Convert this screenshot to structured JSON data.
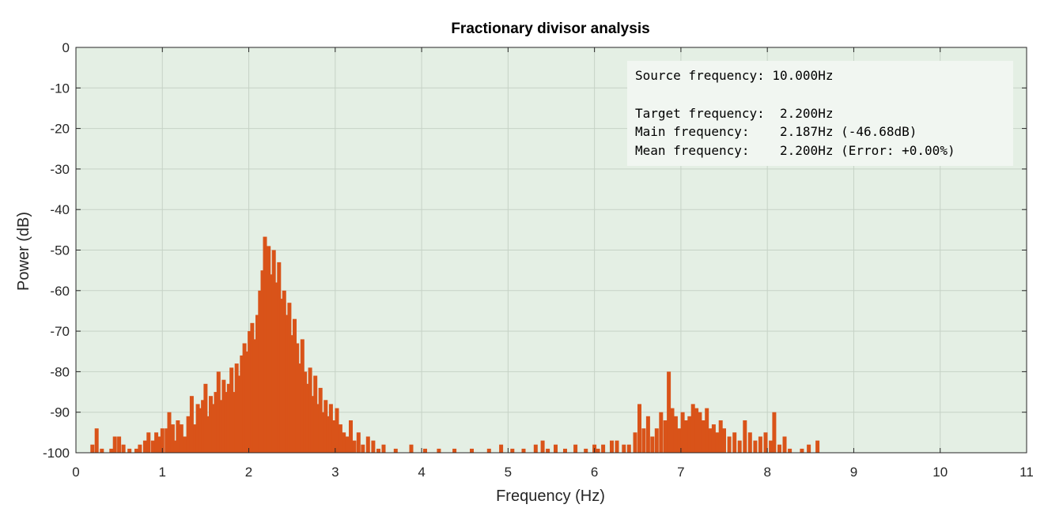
{
  "chart_data": {
    "type": "bar",
    "title": "Fractionary divisor analysis",
    "xlabel": "Frequency (Hz)",
    "ylabel": "Power (dB)",
    "xlim": [
      0,
      11
    ],
    "ylim": [
      -100,
      0
    ],
    "xticks": [
      "0",
      "1",
      "2",
      "3",
      "4",
      "5",
      "6",
      "7",
      "8",
      "9",
      "10",
      "11"
    ],
    "yticks": [
      "0",
      "-10",
      "-20",
      "-30",
      "-40",
      "-50",
      "-60",
      "-70",
      "-80",
      "-90",
      "-100"
    ],
    "grid": true,
    "colors": {
      "series": "#D95319",
      "plot_background": "#E4EFE4",
      "annotation_background": "#F1F6F1"
    },
    "annotation": {
      "position": "top-right",
      "lines": [
        "Source frequency: 10.000Hz",
        "",
        "Target frequency:  2.200Hz",
        "Main frequency:    2.187Hz (-46.68dB)",
        "Mean frequency:    2.200Hz (Error: +0.00%)"
      ]
    },
    "series": [
      {
        "points": [
          [
            0.19,
            -98
          ],
          [
            0.24,
            -94
          ],
          [
            0.3,
            -99
          ],
          [
            0.41,
            -99
          ],
          [
            0.45,
            -96
          ],
          [
            0.5,
            -96
          ],
          [
            0.55,
            -98
          ],
          [
            0.62,
            -99
          ],
          [
            0.7,
            -99
          ],
          [
            0.74,
            -98
          ],
          [
            0.8,
            -97
          ],
          [
            0.84,
            -95
          ],
          [
            0.89,
            -97
          ],
          [
            0.93,
            -95
          ],
          [
            0.97,
            -96
          ],
          [
            1.0,
            -94
          ],
          [
            1.05,
            -94
          ],
          [
            1.08,
            -90
          ],
          [
            1.12,
            -93
          ],
          [
            1.15,
            -97
          ],
          [
            1.18,
            -92
          ],
          [
            1.22,
            -93
          ],
          [
            1.26,
            -96
          ],
          [
            1.3,
            -91
          ],
          [
            1.34,
            -86
          ],
          [
            1.38,
            -93
          ],
          [
            1.41,
            -88
          ],
          [
            1.44,
            -89
          ],
          [
            1.47,
            -87
          ],
          [
            1.5,
            -83
          ],
          [
            1.53,
            -91
          ],
          [
            1.56,
            -86
          ],
          [
            1.59,
            -88
          ],
          [
            1.62,
            -85
          ],
          [
            1.65,
            -80
          ],
          [
            1.68,
            -87
          ],
          [
            1.71,
            -82
          ],
          [
            1.74,
            -85
          ],
          [
            1.77,
            -83
          ],
          [
            1.8,
            -79
          ],
          [
            1.83,
            -85
          ],
          [
            1.86,
            -78
          ],
          [
            1.89,
            -81
          ],
          [
            1.92,
            -76
          ],
          [
            1.95,
            -73
          ],
          [
            1.98,
            -75
          ],
          [
            2.01,
            -70
          ],
          [
            2.04,
            -68
          ],
          [
            2.07,
            -72
          ],
          [
            2.1,
            -66
          ],
          [
            2.13,
            -60
          ],
          [
            2.16,
            -55
          ],
          [
            2.187,
            -46.7
          ],
          [
            2.2,
            -52
          ],
          [
            2.23,
            -49
          ],
          [
            2.26,
            -56
          ],
          [
            2.29,
            -50
          ],
          [
            2.32,
            -58
          ],
          [
            2.35,
            -53
          ],
          [
            2.38,
            -62
          ],
          [
            2.41,
            -60
          ],
          [
            2.44,
            -66
          ],
          [
            2.47,
            -63
          ],
          [
            2.5,
            -71
          ],
          [
            2.53,
            -67
          ],
          [
            2.56,
            -73
          ],
          [
            2.59,
            -78
          ],
          [
            2.62,
            -72
          ],
          [
            2.65,
            -80
          ],
          [
            2.68,
            -83
          ],
          [
            2.71,
            -79
          ],
          [
            2.74,
            -86
          ],
          [
            2.77,
            -81
          ],
          [
            2.8,
            -88
          ],
          [
            2.83,
            -84
          ],
          [
            2.86,
            -90
          ],
          [
            2.89,
            -87
          ],
          [
            2.92,
            -91
          ],
          [
            2.95,
            -88
          ],
          [
            2.98,
            -92
          ],
          [
            3.02,
            -89
          ],
          [
            3.06,
            -93
          ],
          [
            3.1,
            -95
          ],
          [
            3.14,
            -96
          ],
          [
            3.18,
            -92
          ],
          [
            3.22,
            -97
          ],
          [
            3.27,
            -95
          ],
          [
            3.32,
            -98
          ],
          [
            3.38,
            -96
          ],
          [
            3.44,
            -97
          ],
          [
            3.5,
            -99
          ],
          [
            3.56,
            -98
          ],
          [
            3.7,
            -99
          ],
          [
            3.88,
            -98
          ],
          [
            4.04,
            -99
          ],
          [
            4.2,
            -99
          ],
          [
            4.38,
            -99
          ],
          [
            4.58,
            -99
          ],
          [
            4.78,
            -99
          ],
          [
            4.92,
            -98
          ],
          [
            5.05,
            -99
          ],
          [
            5.18,
            -99
          ],
          [
            5.32,
            -98
          ],
          [
            5.4,
            -97
          ],
          [
            5.46,
            -99
          ],
          [
            5.55,
            -98
          ],
          [
            5.66,
            -99
          ],
          [
            5.78,
            -98
          ],
          [
            5.9,
            -99
          ],
          [
            6.0,
            -98
          ],
          [
            6.04,
            -99
          ],
          [
            6.1,
            -98
          ],
          [
            6.2,
            -97
          ],
          [
            6.26,
            -97
          ],
          [
            6.34,
            -98
          ],
          [
            6.4,
            -98
          ],
          [
            6.47,
            -95
          ],
          [
            6.52,
            -88
          ],
          [
            6.57,
            -94
          ],
          [
            6.62,
            -91
          ],
          [
            6.67,
            -96
          ],
          [
            6.72,
            -94
          ],
          [
            6.77,
            -90
          ],
          [
            6.82,
            -92
          ],
          [
            6.86,
            -80
          ],
          [
            6.9,
            -89
          ],
          [
            6.94,
            -91
          ],
          [
            6.98,
            -94
          ],
          [
            7.02,
            -90
          ],
          [
            7.06,
            -92
          ],
          [
            7.1,
            -91
          ],
          [
            7.14,
            -88
          ],
          [
            7.18,
            -89
          ],
          [
            7.22,
            -90
          ],
          [
            7.26,
            -92
          ],
          [
            7.3,
            -89
          ],
          [
            7.34,
            -94
          ],
          [
            7.38,
            -93
          ],
          [
            7.42,
            -95
          ],
          [
            7.46,
            -92
          ],
          [
            7.5,
            -94
          ],
          [
            7.56,
            -96
          ],
          [
            7.62,
            -95
          ],
          [
            7.68,
            -97
          ],
          [
            7.74,
            -92
          ],
          [
            7.8,
            -95
          ],
          [
            7.86,
            -97
          ],
          [
            7.92,
            -96
          ],
          [
            7.98,
            -95
          ],
          [
            8.04,
            -97
          ],
          [
            8.08,
            -90
          ],
          [
            8.14,
            -98
          ],
          [
            8.2,
            -96
          ],
          [
            8.26,
            -99
          ],
          [
            8.4,
            -99
          ],
          [
            8.48,
            -98
          ],
          [
            8.58,
            -97
          ]
        ]
      }
    ]
  }
}
